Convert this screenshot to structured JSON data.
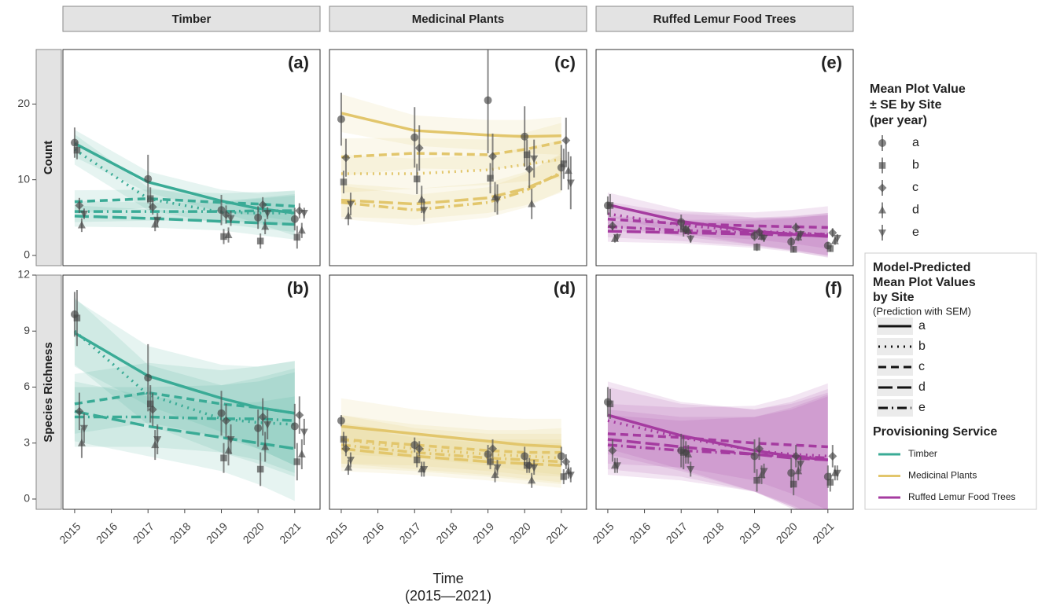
{
  "x_title": "Time",
  "x_subtitle": "(2015—2021)",
  "xlim": [
    2014.68,
    2021.69
  ],
  "xticks": [
    2015,
    2016,
    2017,
    2018,
    2019,
    2020,
    2021
  ],
  "columns": [
    "Timber",
    "Medicinal Plants",
    "Ruffed Lemur Food Trees"
  ],
  "rows": [
    {
      "label": "Count",
      "ylim": [
        -1.35,
        27.2
      ],
      "yticks": [
        0,
        10,
        20
      ]
    },
    {
      "label": "Species Richness",
      "ylim": [
        -0.55,
        12
      ],
      "yticks": [
        0,
        3,
        6,
        9,
        12
      ]
    }
  ],
  "legend_points": {
    "title": [
      "Mean Plot Value",
      "± SE by Site",
      "(per year)"
    ],
    "entries": [
      "a",
      "b",
      "c",
      "d",
      "e"
    ],
    "shapes": [
      "circle",
      "square",
      "diamond",
      "triangle",
      "triangle-down"
    ]
  },
  "legend_lines": {
    "title": [
      "Model-Predicted",
      "Mean Plot Values",
      "by Site"
    ],
    "subtitle": "(Prediction with SEM)",
    "entries": [
      "a",
      "b",
      "c",
      "d",
      "e"
    ],
    "dashes": [
      "solid",
      "dotted",
      "dashed",
      "longdash",
      "dotdash"
    ]
  },
  "legend_service": {
    "title": "Provisioning Service",
    "entries": [
      {
        "name": "Timber",
        "color": "#3aab96"
      },
      {
        "name": "Medicinal Plants",
        "color": "#e2c66c"
      },
      {
        "name": "Ruffed Lemur Food Trees",
        "color": "#a53ba0"
      }
    ]
  },
  "chart_data": [
    {
      "type": "line",
      "tag": "(a)",
      "x": [
        2015,
        2017,
        2019,
        2020,
        2021
      ],
      "series": [
        {
          "values": [
            14.9,
            10.1,
            6.0,
            5.0,
            4.8
          ],
          "se": [
            2,
            3.2,
            2,
            1.5,
            1.5
          ],
          "fit": [
            14.8,
            9.7,
            7.2,
            6.2,
            5.6
          ],
          "fit_se": [
            1.8,
            1.4,
            1.5,
            2,
            3
          ]
        },
        {
          "values": [
            13.9,
            7.5,
            2.5,
            1.9,
            2.4
          ],
          "se": [
            1.2,
            1.5,
            1,
            1,
            1.5
          ],
          "fit": [
            14.0,
            7.5,
            5.7,
            5.6,
            5.6
          ],
          "fit_se": [
            2,
            1.5,
            1.5,
            2,
            2.5
          ]
        },
        {
          "values": [
            6.6,
            6.4,
            5.4,
            6.7,
            5.9
          ],
          "se": [
            1,
            1,
            1.2,
            1,
            1
          ],
          "fit": [
            7.1,
            7.5,
            7.0,
            6.8,
            6.5
          ],
          "fit_se": [
            1.5,
            1.2,
            1.2,
            1.6,
            2
          ]
        },
        {
          "values": [
            4.0,
            4.1,
            2.7,
            3.8,
            3.3
          ],
          "se": [
            0.9,
            0.9,
            1,
            1,
            1
          ],
          "fit": [
            5.2,
            4.9,
            4.5,
            4.3,
            4.1
          ],
          "fit_se": [
            1.4,
            1.2,
            1.2,
            1.6,
            2
          ]
        },
        {
          "values": [
            5.5,
            4.7,
            4.9,
            5.6,
            5.6
          ],
          "se": [
            0.7,
            0.9,
            1,
            0.8,
            0.7
          ],
          "fit": [
            5.8,
            5.8,
            5.8,
            5.9,
            5.9
          ],
          "fit_se": [
            1.4,
            1.2,
            1.2,
            1.6,
            2
          ]
        }
      ]
    },
    {
      "type": "line",
      "tag": "(b)",
      "x": [
        2015,
        2017,
        2019,
        2020,
        2021
      ],
      "series": [
        {
          "values": [
            9.9,
            6.5,
            4.6,
            3.8,
            3.9
          ],
          "se": [
            1.2,
            1.8,
            1.2,
            1,
            1.2
          ],
          "fit": [
            8.9,
            6.6,
            5.4,
            4.9,
            4.6
          ],
          "fit_se": [
            1.8,
            1.6,
            1.8,
            2.2,
            2.8
          ]
        },
        {
          "values": [
            9.7,
            5.1,
            2.2,
            1.6,
            2.0
          ],
          "se": [
            1.5,
            1,
            0.8,
            0.9,
            1
          ],
          "fit": [
            9.0,
            5.6,
            4.3,
            4.1,
            4.0
          ],
          "fit_se": [
            1.8,
            1.6,
            1.8,
            2.2,
            2.8
          ]
        },
        {
          "values": [
            4.7,
            4.8,
            4.2,
            4.4,
            4.5
          ],
          "se": [
            1,
            0.9,
            0.9,
            1,
            1
          ],
          "fit": [
            5.1,
            5.7,
            5.1,
            4.9,
            4.6
          ],
          "fit_se": [
            1.6,
            1.6,
            1.8,
            2.2,
            2.8
          ]
        },
        {
          "values": [
            3.0,
            2.9,
            2.6,
            2.8,
            2.4
          ],
          "se": [
            0.8,
            0.8,
            0.8,
            0.8,
            0.8
          ],
          "fit": [
            4.7,
            3.9,
            3.3,
            3.0,
            2.7
          ],
          "fit_se": [
            1.6,
            1.6,
            1.8,
            2.2,
            2.8
          ]
        },
        {
          "values": [
            3.8,
            3.2,
            3.2,
            4.0,
            3.6
          ],
          "se": [
            0.8,
            0.8,
            0.8,
            0.8,
            0.7
          ],
          "fit": [
            4.4,
            4.4,
            4.3,
            4.3,
            4.2
          ],
          "fit_se": [
            1.6,
            1.6,
            1.8,
            2.2,
            2.8
          ]
        }
      ]
    },
    {
      "type": "line",
      "tag": "(c)",
      "x": [
        2015,
        2017,
        2019,
        2020,
        2021
      ],
      "series": [
        {
          "values": [
            18.0,
            15.6,
            20.5,
            15.7,
            11.6
          ],
          "se": [
            3.5,
            4,
            7,
            4,
            3
          ],
          "fit": [
            18.8,
            16.5,
            15.9,
            15.7,
            15.8
          ],
          "fit_se": [
            2.5,
            2,
            2,
            2.2,
            2.5
          ]
        },
        {
          "values": [
            9.7,
            10.1,
            10.2,
            13.3,
            12.1
          ],
          "se": [
            1.5,
            2,
            2,
            2,
            2
          ],
          "fit": [
            10.8,
            10.8,
            11.3,
            12.0,
            12.7
          ],
          "fit_se": [
            2.5,
            2,
            2,
            2.2,
            2.5
          ]
        },
        {
          "values": [
            12.9,
            14.2,
            13.1,
            11.4,
            15.2
          ],
          "se": [
            2.5,
            3,
            3,
            2.5,
            3
          ],
          "fit": [
            13.0,
            13.5,
            13.3,
            14.0,
            15.0
          ],
          "fit_se": [
            2.5,
            2,
            2,
            2.2,
            2.5
          ]
        },
        {
          "values": [
            5.2,
            7.4,
            7.7,
            6.8,
            11.2
          ],
          "se": [
            1.2,
            1.8,
            2,
            2,
            2.5
          ],
          "fit": [
            7.3,
            6.8,
            7.6,
            8.8,
            10.8
          ],
          "fit_se": [
            2.2,
            2,
            2,
            2.2,
            2.5
          ]
        },
        {
          "values": [
            6.8,
            6.0,
            7.4,
            12.8,
            9.6
          ],
          "se": [
            1.5,
            1.5,
            2,
            2.5,
            3.5
          ],
          "fit": [
            7.0,
            6.0,
            7.0,
            8.5,
            11.0
          ],
          "fit_se": [
            2.2,
            2,
            2,
            2.2,
            2.5
          ]
        }
      ]
    },
    {
      "type": "line",
      "tag": "(d)",
      "x": [
        2015,
        2017,
        2019,
        2020,
        2021
      ],
      "series": [
        {
          "values": [
            4.2,
            2.9,
            2.4,
            2.3,
            2.3
          ],
          "se": [
            0.3,
            0.4,
            0.5,
            0.5,
            0.5
          ],
          "fit": [
            3.9,
            3.5,
            3.1,
            2.9,
            2.8
          ],
          "fit_se": [
            1.5,
            1.3,
            1.3,
            1.4,
            1.5
          ]
        },
        {
          "values": [
            3.2,
            2.1,
            2.0,
            1.8,
            1.2
          ],
          "se": [
            0.4,
            0.4,
            0.4,
            0.4,
            0.4
          ],
          "fit": [
            3.2,
            2.7,
            2.4,
            2.3,
            2.2
          ],
          "fit_se": [
            1.3,
            1.1,
            1.1,
            1.2,
            1.3
          ]
        },
        {
          "values": [
            2.7,
            2.7,
            2.7,
            1.8,
            2.0
          ],
          "se": [
            0.4,
            0.4,
            0.5,
            0.4,
            0.4
          ],
          "fit": [
            3.2,
            2.9,
            2.6,
            2.5,
            2.5
          ],
          "fit_se": [
            1.3,
            1.1,
            1.1,
            1.2,
            1.3
          ]
        },
        {
          "values": [
            1.7,
            1.6,
            1.3,
            1.0,
            1.5
          ],
          "se": [
            0.4,
            0.4,
            0.4,
            0.4,
            0.4
          ],
          "fit": [
            2.7,
            2.3,
            2.0,
            1.9,
            1.8
          ],
          "fit_se": [
            1.2,
            1,
            1,
            1.1,
            1.2
          ]
        },
        {
          "values": [
            2.1,
            1.6,
            1.7,
            1.7,
            1.3
          ],
          "se": [
            0.4,
            0.4,
            0.4,
            0.4,
            0.4
          ],
          "fit": [
            2.9,
            2.5,
            2.2,
            2.1,
            2.0
          ],
          "fit_se": [
            1.2,
            1,
            1,
            1.1,
            1.2
          ]
        }
      ]
    },
    {
      "type": "line",
      "tag": "(e)",
      "x": [
        2015,
        2017,
        2019,
        2020,
        2021
      ],
      "series": [
        {
          "values": [
            6.6,
            4.4,
            2.6,
            1.8,
            1.3
          ],
          "se": [
            1.2,
            1,
            0.7,
            0.6,
            0.5
          ],
          "fit": [
            6.7,
            4.5,
            3.2,
            2.8,
            2.5
          ],
          "fit_se": [
            1.6,
            1.5,
            1.8,
            2.2,
            2.8
          ]
        },
        {
          "values": [
            6.6,
            3.5,
            1.1,
            0.8,
            0.9
          ],
          "se": [
            1.5,
            1,
            0.5,
            0.4,
            0.4
          ],
          "fit": [
            5.5,
            4.0,
            3.2,
            3.0,
            2.8
          ],
          "fit_se": [
            1.6,
            1.5,
            1.8,
            2.2,
            2.8
          ]
        },
        {
          "values": [
            3.9,
            3.4,
            3.1,
            3.7,
            3.0
          ],
          "se": [
            0.6,
            0.6,
            0.6,
            0.6,
            0.6
          ],
          "fit": [
            4.8,
            4.2,
            3.9,
            3.8,
            3.7
          ],
          "fit_se": [
            1.5,
            1.5,
            1.8,
            2.2,
            2.8
          ]
        },
        {
          "values": [
            2.2,
            3.3,
            2.5,
            2.4,
            1.9
          ],
          "se": [
            0.5,
            0.6,
            0.5,
            0.5,
            0.5
          ],
          "fit": [
            3.2,
            3.0,
            2.8,
            2.7,
            2.6
          ],
          "fit_se": [
            1.4,
            1.4,
            1.8,
            2.2,
            2.8
          ]
        },
        {
          "values": [
            2.4,
            2.2,
            2.3,
            2.8,
            2.3
          ],
          "se": [
            0.5,
            0.5,
            0.5,
            0.5,
            0.5
          ],
          "fit": [
            3.8,
            3.3,
            3.0,
            2.9,
            2.8
          ],
          "fit_se": [
            1.4,
            1.4,
            1.8,
            2.2,
            2.8
          ]
        }
      ]
    },
    {
      "type": "line",
      "tag": "(f)",
      "x": [
        2015,
        2017,
        2019,
        2020,
        2021
      ],
      "series": [
        {
          "values": [
            5.2,
            2.6,
            2.3,
            1.4,
            1.2
          ],
          "se": [
            0.8,
            0.9,
            0.9,
            0.8,
            0.6
          ],
          "fit": [
            4.5,
            3.4,
            2.6,
            2.3,
            2.1
          ],
          "fit_se": [
            1.8,
            1.8,
            2.2,
            2.8,
            3.6
          ]
        },
        {
          "values": [
            5.1,
            2.5,
            1.0,
            0.8,
            0.9
          ],
          "se": [
            0.8,
            0.9,
            0.6,
            0.6,
            0.5
          ],
          "fit": [
            4.2,
            3.3,
            2.6,
            2.4,
            2.3
          ],
          "fit_se": [
            1.8,
            1.8,
            2.2,
            2.8,
            3.6
          ]
        },
        {
          "values": [
            2.6,
            2.5,
            2.7,
            2.3,
            2.3
          ],
          "se": [
            0.6,
            0.6,
            0.6,
            0.6,
            0.6
          ],
          "fit": [
            3.5,
            3.3,
            3.0,
            2.9,
            2.8
          ],
          "fit_se": [
            1.6,
            1.6,
            2,
            2.6,
            3.4
          ]
        },
        {
          "values": [
            1.8,
            2.4,
            1.3,
            1.5,
            1.4
          ],
          "se": [
            0.4,
            0.5,
            0.5,
            0.5,
            0.4
          ],
          "fit": [
            3.2,
            2.8,
            2.4,
            2.2,
            2.1
          ],
          "fit_se": [
            1.6,
            1.6,
            2,
            2.6,
            3.4
          ]
        },
        {
          "values": [
            1.8,
            1.6,
            1.5,
            1.9,
            1.4
          ],
          "se": [
            0.4,
            0.4,
            0.4,
            0.4,
            0.4
          ],
          "fit": [
            2.9,
            2.6,
            2.4,
            2.3,
            2.2
          ],
          "fit_se": [
            1.6,
            1.6,
            2,
            2.6,
            3.4
          ]
        }
      ]
    }
  ]
}
